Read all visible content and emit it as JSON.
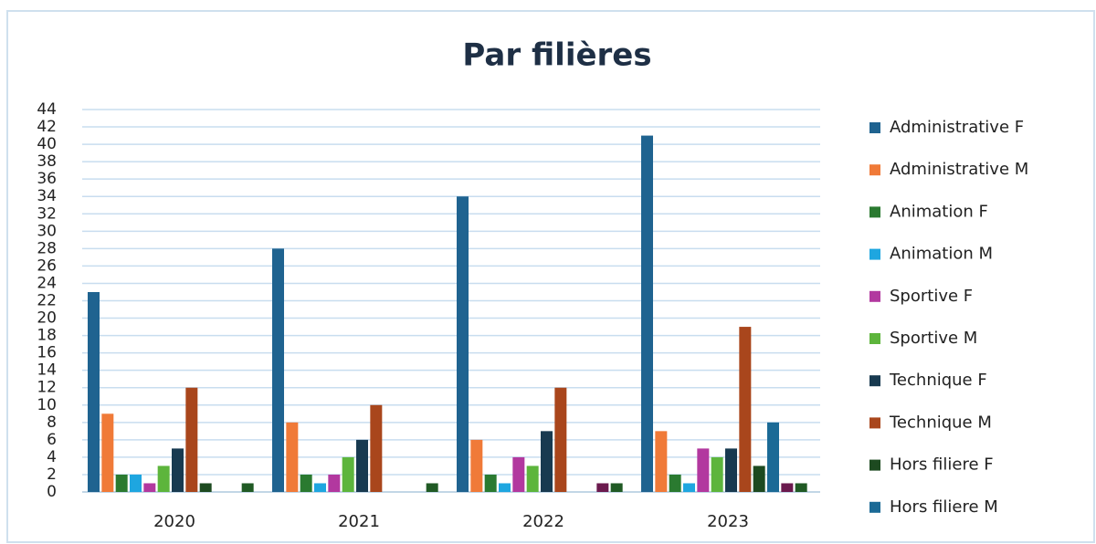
{
  "chart_data": {
    "type": "bar",
    "title": "Par filières",
    "categories": [
      "2020",
      "2021",
      "2022",
      "2023"
    ],
    "ylim": [
      0,
      44
    ],
    "yticks": [
      0,
      2,
      4,
      6,
      8,
      10,
      12,
      14,
      16,
      18,
      20,
      22,
      24,
      26,
      28,
      30,
      32,
      34,
      36,
      38,
      40,
      42,
      44
    ],
    "grid": true,
    "legend": "right",
    "series": [
      {
        "name": "Administrative F",
        "color": "#1f6390",
        "values": [
          23,
          28,
          34,
          41
        ]
      },
      {
        "name": "Administrative M",
        "color": "#f07a38",
        "values": [
          9,
          8,
          6,
          7
        ]
      },
      {
        "name": "Animation F",
        "color": "#2a7a30",
        "values": [
          2,
          2,
          2,
          2
        ]
      },
      {
        "name": "Animation M",
        "color": "#1ea6e0",
        "values": [
          2,
          1,
          1,
          1
        ]
      },
      {
        "name": "Sportive F",
        "color": "#b2389f",
        "values": [
          1,
          2,
          4,
          5
        ]
      },
      {
        "name": "Sportive M",
        "color": "#5db53c",
        "values": [
          3,
          4,
          3,
          4
        ]
      },
      {
        "name": "Technique F",
        "color": "#183a50",
        "values": [
          5,
          6,
          7,
          5
        ]
      },
      {
        "name": "Technique M",
        "color": "#a9461c",
        "values": [
          12,
          10,
          12,
          19
        ]
      },
      {
        "name": "Hors filiere F",
        "color": "#1d4a20",
        "values": [
          1,
          0,
          0,
          3
        ]
      },
      {
        "name": "Hors filiere M",
        "color": "#1b6a96",
        "values": [
          0,
          0,
          0,
          8
        ]
      },
      {
        "color": "#6b1a4e",
        "values": [
          0,
          0,
          1,
          1
        ]
      },
      {
        "color": "#205a24",
        "values": [
          1,
          1,
          1,
          1
        ]
      }
    ]
  }
}
